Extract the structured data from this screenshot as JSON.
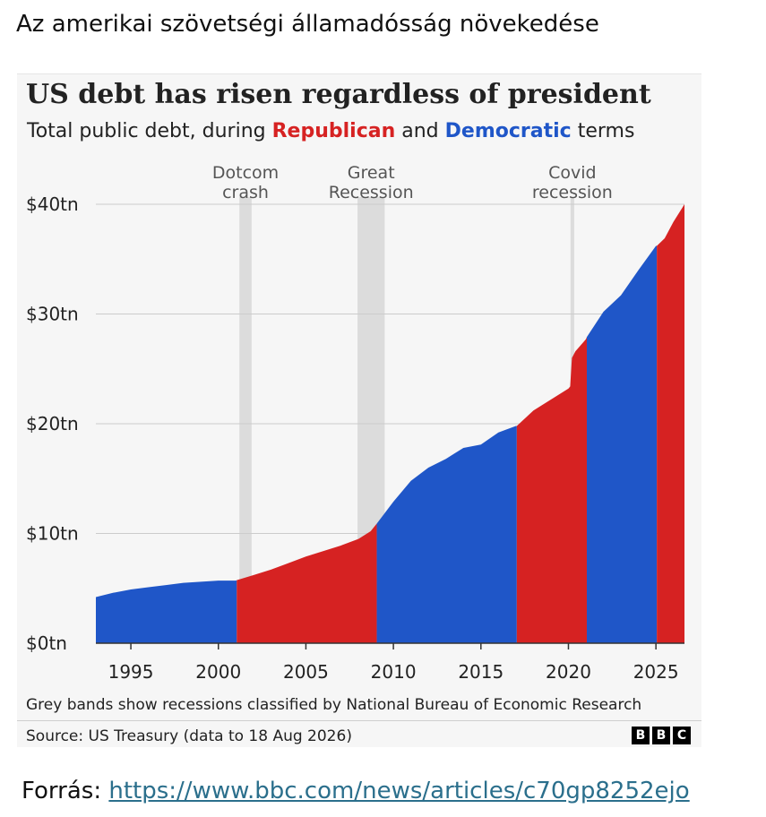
{
  "page": {
    "heading": "Az amerikai szövetségi államadósság növekedése",
    "source_prefix": "Forrás:",
    "source_url": "https://www.bbc.com/news/articles/c70gp8252ejo"
  },
  "chart_data": {
    "type": "area",
    "title": "US debt has risen regardless of president",
    "subtitle_parts": [
      "Total public debt, during ",
      "Republican",
      " and ",
      "Democratic",
      " terms"
    ],
    "xlabel": "",
    "ylabel": "",
    "xlim": [
      1993.0,
      2026.63
    ],
    "ylim": [
      0,
      40
    ],
    "y_ticks": [
      0,
      10,
      20,
      30,
      40
    ],
    "y_tick_labels": [
      "$0tn",
      "$10tn",
      "$20tn",
      "$30tn",
      "$40tn"
    ],
    "x_ticks": [
      1995,
      2000,
      2005,
      2010,
      2015,
      2020,
      2025
    ],
    "x_tick_labels": [
      "1995",
      "2000",
      "2005",
      "2010",
      "2015",
      "2020",
      "2025"
    ],
    "grid": true,
    "colors": {
      "Republican": "#d62222",
      "Democratic": "#1f56c8",
      "recession": "#dcdcdc",
      "grid": "#cccccc"
    },
    "terms": [
      {
        "party": "Democratic",
        "start": 1993.0,
        "end": 2001.05
      },
      {
        "party": "Republican",
        "start": 2001.05,
        "end": 2009.05
      },
      {
        "party": "Democratic",
        "start": 2009.05,
        "end": 2017.05
      },
      {
        "party": "Republican",
        "start": 2017.05,
        "end": 2021.05
      },
      {
        "party": "Democratic",
        "start": 2021.05,
        "end": 2025.05
      },
      {
        "party": "Republican",
        "start": 2025.05,
        "end": 2026.63
      }
    ],
    "recessions": [
      {
        "label_lines": [
          "Dotcom",
          "crash"
        ],
        "start": 2001.2,
        "end": 2001.9
      },
      {
        "label_lines": [
          "Great",
          "Recession"
        ],
        "start": 2007.95,
        "end": 2009.5
      },
      {
        "label_lines": [
          "Covid",
          "recession"
        ],
        "start": 2020.12,
        "end": 2020.33
      }
    ],
    "x": [
      1993.0,
      1994.0,
      1995.0,
      1996.0,
      1997.0,
      1998.0,
      1999.0,
      2000.0,
      2001.0,
      2001.05,
      2002.0,
      2003.0,
      2004.0,
      2005.0,
      2006.0,
      2007.0,
      2008.0,
      2008.7,
      2008.9,
      2009.05,
      2010.0,
      2011.0,
      2012.0,
      2013.0,
      2014.0,
      2015.0,
      2016.0,
      2017.0,
      2017.05,
      2018.0,
      2019.0,
      2020.0,
      2020.1,
      2020.2,
      2020.4,
      2021.0,
      2021.05,
      2022.0,
      2023.0,
      2024.0,
      2025.0,
      2025.05,
      2025.5,
      2026.0,
      2026.63
    ],
    "values": [
      4.2,
      4.6,
      4.9,
      5.1,
      5.3,
      5.5,
      5.6,
      5.7,
      5.7,
      5.75,
      6.2,
      6.7,
      7.3,
      7.9,
      8.4,
      8.9,
      9.5,
      10.2,
      10.6,
      10.9,
      12.9,
      14.8,
      16.0,
      16.8,
      17.8,
      18.1,
      19.2,
      19.8,
      19.8,
      21.2,
      22.2,
      23.2,
      23.4,
      26.0,
      26.6,
      27.7,
      27.9,
      30.2,
      31.7,
      34.0,
      36.2,
      36.2,
      36.9,
      38.4,
      40.0
    ],
    "footnote": "Grey bands show recessions classified by National Bureau of Economic Research",
    "source": "Source: US Treasury (data to 18 Aug 2026)",
    "logo_letters": [
      "B",
      "B",
      "C"
    ]
  }
}
